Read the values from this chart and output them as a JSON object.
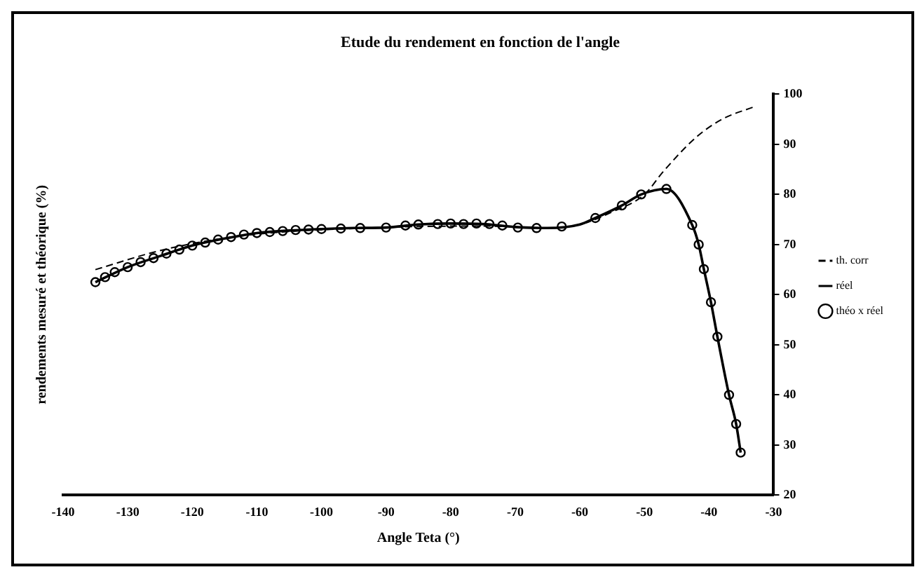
{
  "chart_data": {
    "type": "line",
    "title": "Etude du rendement en fonction de l'angle",
    "xlabel": "Angle Teta (°)",
    "ylabel": "rendements mesuré et théorique (%)",
    "xlim": [
      -140,
      -30
    ],
    "xticks": [
      -140,
      -130,
      -120,
      -110,
      -100,
      -90,
      -80,
      -70,
      -60,
      -50,
      -40,
      -30
    ],
    "ylim": [
      20,
      100
    ],
    "yticks": [
      20,
      30,
      40,
      50,
      60,
      70,
      80,
      90,
      100
    ],
    "grid": false,
    "legend": "right",
    "series": [
      {
        "name": "th. corr",
        "color": "#000000",
        "line_style": "dashed",
        "marker": "none",
        "x": [
          -135,
          -125,
          -115,
          -105,
          -95,
          -85,
          -75,
          -65,
          -60,
          -55,
          -50,
          -47,
          -42,
          -38,
          -33
        ],
        "values": [
          65,
          68.8,
          71.3,
          72.6,
          73.2,
          73.6,
          73.7,
          73.3,
          74,
          76.5,
          80,
          84.7,
          91.4,
          95,
          97.5
        ]
      },
      {
        "name": "réel",
        "color": "#000000",
        "line_style": "solid",
        "marker": "none",
        "x": [
          -135,
          -130,
          -125,
          -120,
          -115,
          -110,
          -105,
          -100,
          -95,
          -90,
          -85,
          -80,
          -75,
          -70,
          -65,
          -60,
          -57.6,
          -53.5,
          -50.5,
          -46.6,
          -42.6,
          -41.6,
          -40.8,
          -39.7,
          -38.7,
          -36.9,
          -35.8,
          -35.1
        ],
        "values": [
          62.5,
          65.5,
          67.7,
          69.8,
          71.2,
          72.3,
          72.8,
          73.1,
          73.3,
          73.4,
          74,
          74.2,
          74.1,
          73.5,
          73.3,
          74,
          75.3,
          77.8,
          80,
          81.1,
          73.9,
          70,
          65.1,
          58.5,
          51.6,
          40,
          34.2,
          28.5
        ]
      },
      {
        "name": "théo x réel",
        "type": "scatter",
        "color": "#000000",
        "marker": "circle",
        "x": [
          -135,
          -133.5,
          -132,
          -130,
          -128,
          -126,
          -124,
          -122,
          -120,
          -118,
          -116,
          -114,
          -112,
          -110,
          -108,
          -106,
          -104,
          -102,
          -100,
          -97,
          -94,
          -90,
          -87,
          -85,
          -82,
          -80,
          -78,
          -76,
          -74,
          -72,
          -69.6,
          -66.7,
          -62.8,
          -57.6,
          -53.5,
          -50.5,
          -46.6,
          -42.6,
          -41.6,
          -40.8,
          -39.7,
          -38.7,
          -36.9,
          -35.8,
          -35.1
        ],
        "values": [
          62.5,
          63.5,
          64.5,
          65.5,
          66.5,
          67.3,
          68.2,
          69,
          69.8,
          70.4,
          71,
          71.5,
          72,
          72.3,
          72.5,
          72.7,
          72.9,
          73,
          73.1,
          73.2,
          73.3,
          73.4,
          73.8,
          74,
          74.1,
          74.2,
          74.1,
          74.2,
          74.1,
          73.8,
          73.4,
          73.3,
          73.6,
          75.3,
          77.8,
          80,
          81.1,
          73.9,
          70,
          65.1,
          58.5,
          51.6,
          40,
          34.2,
          28.5
        ]
      }
    ]
  }
}
